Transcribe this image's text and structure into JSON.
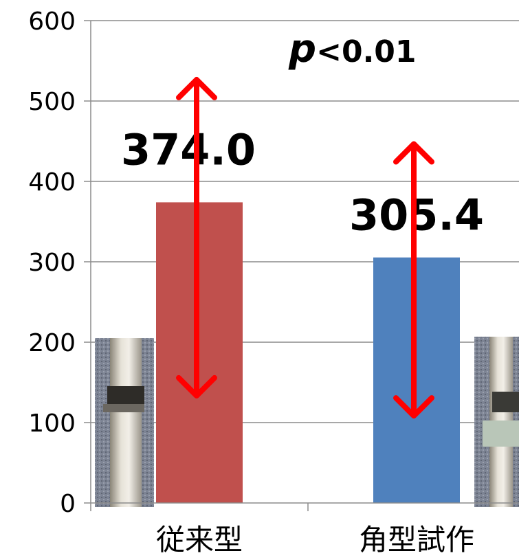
{
  "chart_data": {
    "type": "bar",
    "categories": [
      "従来型",
      "角型試作"
    ],
    "values": [
      374.0,
      305.4
    ],
    "data_labels": [
      "374.0",
      "305.4"
    ],
    "error_range": [
      [
        130,
        530
      ],
      [
        105,
        450
      ]
    ],
    "colors": [
      "#c0504d",
      "#4f81bd"
    ],
    "error_color": "#ff0000",
    "ylim": [
      0,
      600
    ],
    "yticks": [
      0,
      100,
      200,
      300,
      400,
      500,
      600
    ],
    "ytick_labels": [
      "0",
      "100",
      "200",
      "300",
      "400",
      "500",
      "600"
    ],
    "grid": true,
    "annotation": {
      "italic": "p",
      "rest": "<0.01"
    },
    "photos": [
      "product-photo-conventional",
      "product-photo-square-prototype"
    ]
  }
}
